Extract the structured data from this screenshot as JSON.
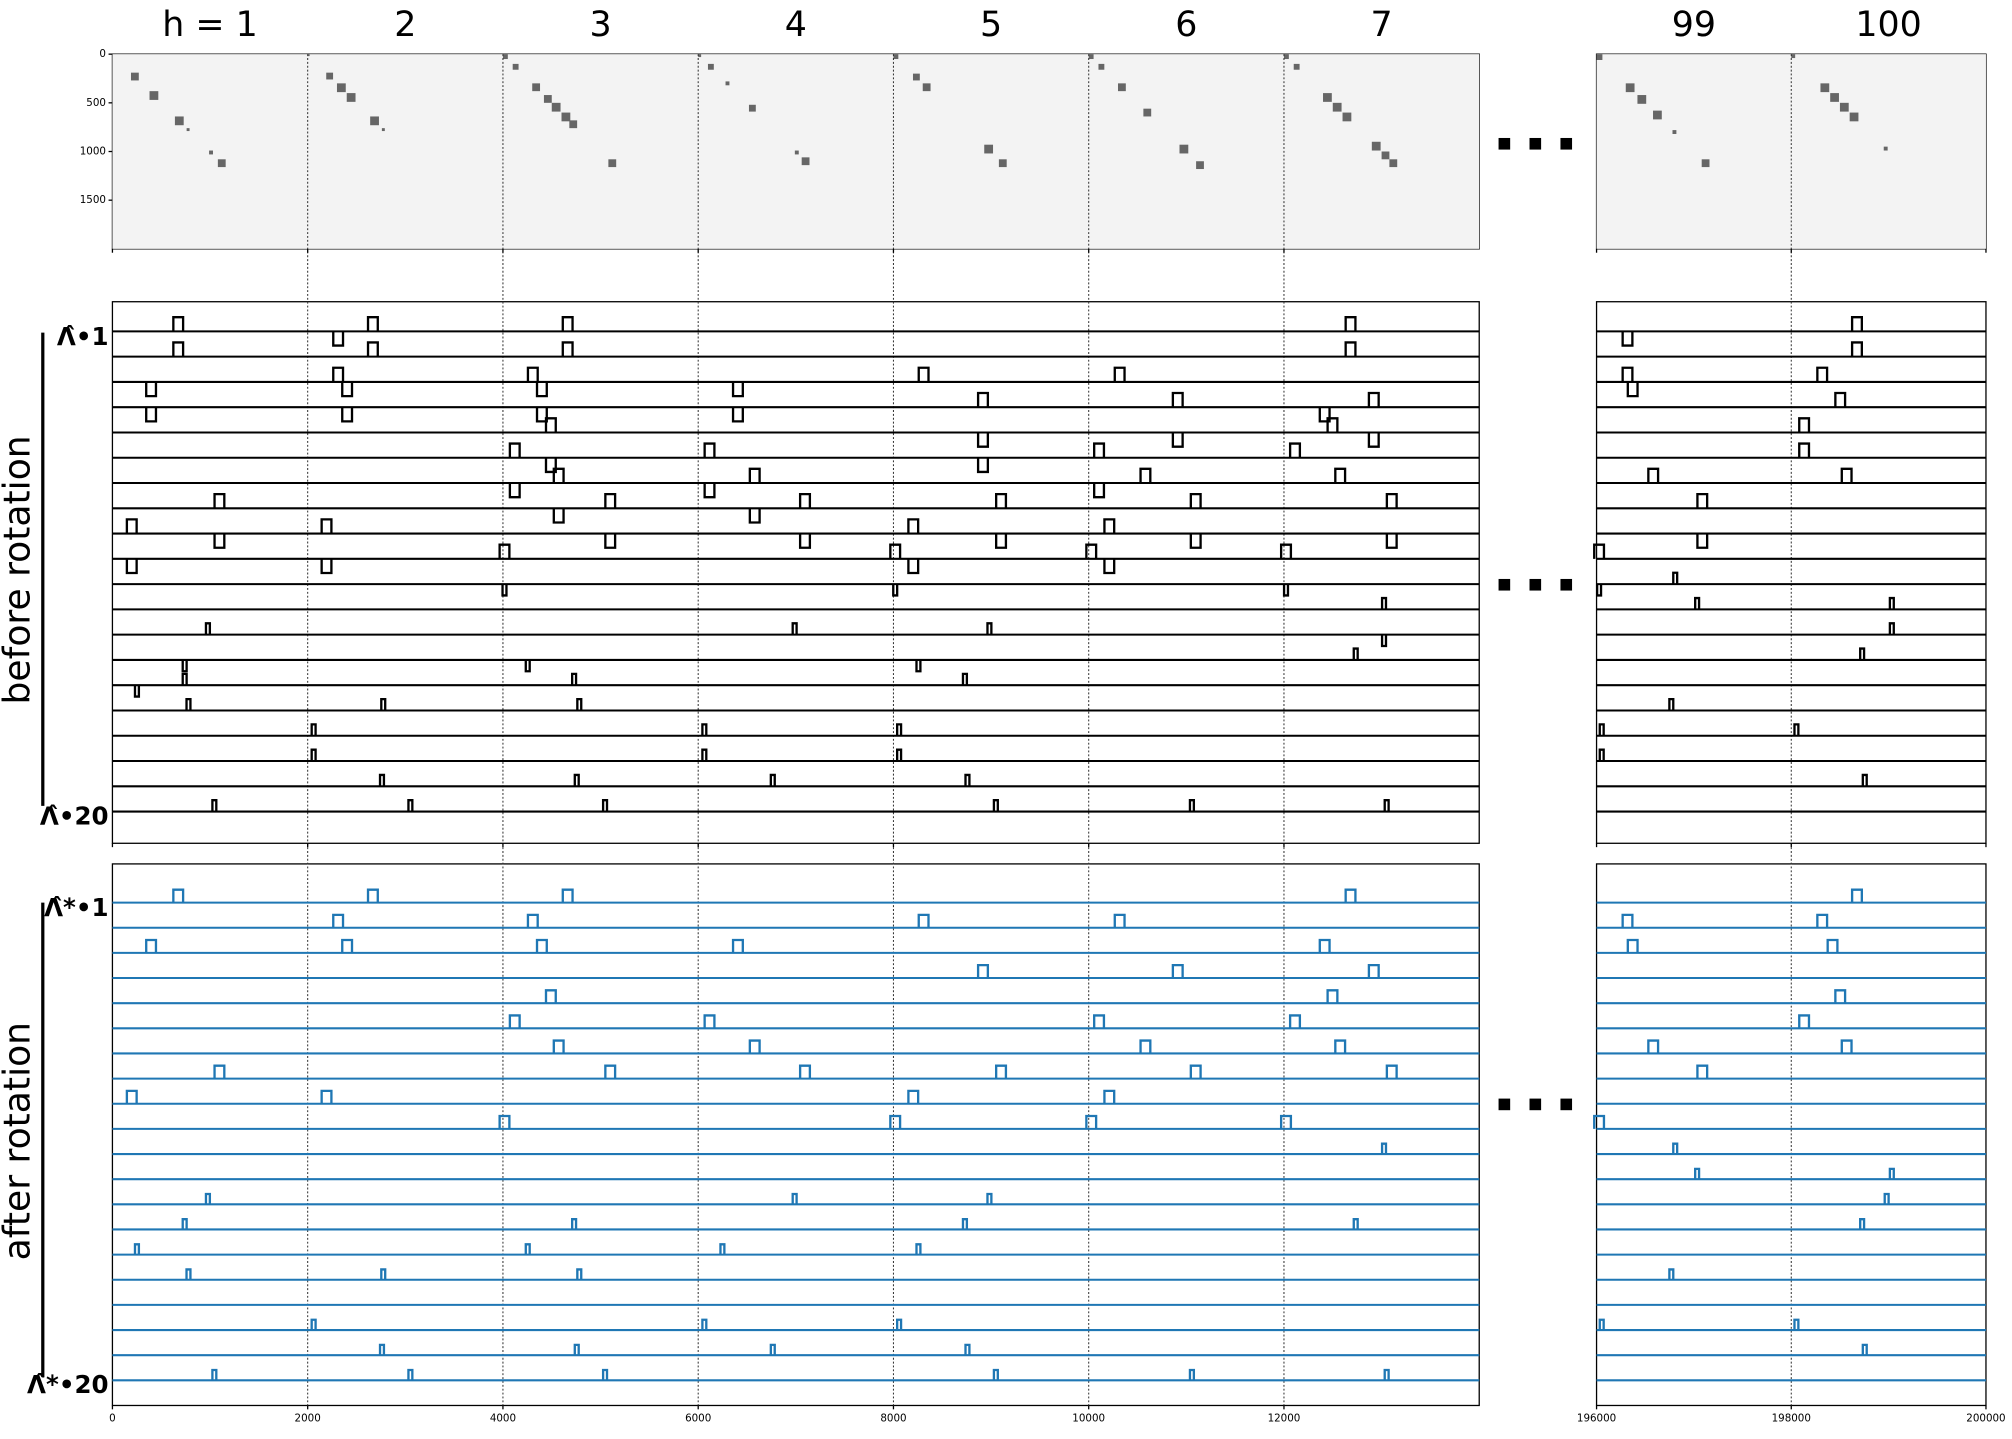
{
  "chart_data": {
    "type": "trace-panels",
    "columns": [
      "h = 1",
      "2",
      "3",
      "4",
      "5",
      "6",
      "7",
      "99",
      "100"
    ],
    "column_starts": [
      0,
      2000,
      4000,
      6000,
      8000,
      10000,
      12000,
      196000,
      198000
    ],
    "x_left": {
      "xlim": [
        0,
        14000
      ],
      "xticks": [
        0,
        2000,
        4000,
        6000,
        8000,
        10000,
        12000
      ]
    },
    "x_right": {
      "xlim": [
        196000,
        200000
      ],
      "xticks": [
        196000,
        198000,
        200000
      ]
    },
    "heatmap": {
      "ylim": [
        0,
        2000
      ],
      "yticks": [
        0,
        500,
        1000,
        1500
      ],
      "blocks": [
        [
          [
            190,
            80
          ],
          [
            380,
            90
          ],
          [
            640,
            90
          ],
          [
            760,
            30
          ],
          [
            990,
            40
          ],
          [
            1080,
            80
          ]
        ],
        [
          [
            0,
            20
          ],
          [
            190,
            70
          ],
          [
            300,
            90
          ],
          [
            400,
            90
          ],
          [
            640,
            90
          ],
          [
            760,
            30
          ]
        ],
        [
          [
            0,
            50
          ],
          [
            100,
            60
          ],
          [
            300,
            80
          ],
          [
            420,
            80
          ],
          [
            500,
            90
          ],
          [
            600,
            90
          ],
          [
            680,
            80
          ],
          [
            1080,
            80
          ]
        ],
        [
          [
            0,
            30
          ],
          [
            100,
            60
          ],
          [
            280,
            40
          ],
          [
            520,
            70
          ],
          [
            990,
            40
          ],
          [
            1060,
            80
          ]
        ],
        [
          [
            0,
            50
          ],
          [
            200,
            70
          ],
          [
            300,
            80
          ],
          [
            930,
            90
          ],
          [
            1080,
            80
          ]
        ],
        [
          [
            0,
            50
          ],
          [
            100,
            60
          ],
          [
            300,
            80
          ],
          [
            560,
            80
          ],
          [
            930,
            90
          ],
          [
            1100,
            80
          ]
        ],
        [
          [
            0,
            50
          ],
          [
            100,
            60
          ],
          [
            400,
            90
          ],
          [
            500,
            90
          ],
          [
            600,
            90
          ],
          [
            900,
            90
          ],
          [
            1000,
            80
          ],
          [
            1080,
            80
          ]
        ],
        [
          [
            0,
            60
          ],
          [
            300,
            90
          ],
          [
            420,
            90
          ],
          [
            580,
            90
          ],
          [
            780,
            40
          ],
          [
            1080,
            80
          ]
        ],
        [
          [
            0,
            40
          ],
          [
            300,
            90
          ],
          [
            400,
            90
          ],
          [
            500,
            90
          ],
          [
            600,
            90
          ],
          [
            950,
            40
          ]
        ]
      ]
    },
    "before": {
      "label": "before rotation",
      "first": "Λ̂•1",
      "last": "Λ̂•20",
      "color": "#000000",
      "rows": [
        {
          "bumps": [
            674,
            2668,
            4663,
            12682,
            198675
          ],
          "dips": [
            2312,
            196318
          ]
        },
        {
          "bumps": [
            674,
            2668,
            4663,
            12682,
            198675
          ],
          "dips": []
        },
        {
          "bumps": [
            2312,
            4306,
            8309,
            10317,
            196318,
            198318
          ],
          "dips": [
            396,
            2404,
            4399,
            6407,
            196371
          ]
        },
        {
          "bumps": [
            8917,
            10912,
            12920,
            198503
          ],
          "dips": [
            396,
            2404,
            4399,
            6407,
            12417
          ]
        },
        {
          "bumps": [
            4491,
            12497,
            198132
          ],
          "dips": [
            8917,
            10912,
            12920
          ]
        },
        {
          "bumps": [
            4121,
            6116,
            10106,
            12113,
            198132
          ],
          "dips": [
            4491,
            8917
          ]
        },
        {
          "bumps": [
            4571,
            6579,
            10581,
            12576,
            196582,
            198569
          ],
          "dips": [
            4121,
            6116,
            10106
          ]
        },
        {
          "bumps": [
            1096,
            5099,
            7094,
            9102,
            11096,
            13104,
            197086
          ],
          "dips": [
            4571,
            6579
          ]
        },
        {
          "bumps": [
            198,
            2193,
            8203,
            10211
          ],
          "dips": [
            1096,
            5099,
            7094,
            9102,
            11096,
            13104,
            197086
          ]
        },
        {
          "bumps": [
            4016,
            8018,
            10026,
            12021,
            196026
          ],
          "dips": [
            198,
            2193,
            8203,
            10211
          ]
        },
        {
          "bumps": [
            196808
          ],
          "dips": [
            4016,
            8018,
            12021,
            196026
          ]
        },
        {
          "bumps": [
            13025,
            197033,
            199033
          ],
          "dips": []
        },
        {
          "bumps": [
            978,
            6988,
            8983,
            199033
          ],
          "dips": [
            13025
          ]
        },
        {
          "bumps": [
            12735,
            198728
          ],
          "dips": [
            740,
            4254,
            8256
          ]
        },
        {
          "bumps": [
            740,
            4729,
            8732
          ],
          "dips": [
            251
          ]
        },
        {
          "bumps": [
            779,
            2774,
            4782,
            196768
          ],
          "dips": []
        },
        {
          "bumps": [
            2061,
            6063,
            8058,
            196053,
            198053
          ],
          "dips": []
        },
        {
          "bumps": [
            2061,
            6063,
            8058,
            196053
          ],
          "dips": []
        },
        {
          "bumps": [
            2761,
            4756,
            6764,
            8758,
            198755
          ],
          "dips": []
        },
        {
          "bumps": [
            1044,
            3052,
            5046,
            9049,
            11057,
            13052
          ],
          "dips": []
        }
      ]
    },
    "after": {
      "label": "after rotation",
      "first": "Λ̂*•1",
      "last": "Λ̂*•20",
      "color": "#1f77b4",
      "rows": [
        {
          "bumps": [
            674,
            2668,
            4663,
            12682,
            198675
          ]
        },
        {
          "bumps": [
            2312,
            4306,
            8309,
            10317,
            196318,
            198318
          ]
        },
        {
          "bumps": [
            396,
            2404,
            4399,
            6407,
            12417,
            196371,
            198424
          ]
        },
        {
          "bumps": [
            8917,
            10912,
            12920
          ]
        },
        {
          "bumps": [
            4491,
            12497,
            198503
          ]
        },
        {
          "bumps": [
            4121,
            6116,
            10106,
            12113,
            198132
          ]
        },
        {
          "bumps": [
            4571,
            6579,
            10581,
            12576,
            196582,
            198569
          ]
        },
        {
          "bumps": [
            1096,
            5099,
            7094,
            9102,
            11096,
            13104,
            197086
          ]
        },
        {
          "bumps": [
            198,
            2193,
            8203,
            10211
          ]
        },
        {
          "bumps": [
            4016,
            8018,
            10026,
            12021,
            196026
          ]
        },
        {
          "bumps": [
            13025,
            196808
          ]
        },
        {
          "bumps": [
            197033,
            199033
          ]
        },
        {
          "bumps": [
            978,
            6988,
            8983,
            198980
          ]
        },
        {
          "bumps": [
            740,
            4729,
            8732,
            12735,
            198728
          ]
        },
        {
          "bumps": [
            251,
            4254,
            6248,
            8256
          ]
        },
        {
          "bumps": [
            779,
            2774,
            4782,
            196768
          ]
        },
        {
          "bumps": []
        },
        {
          "bumps": [
            2061,
            6063,
            8058,
            196053,
            198053
          ]
        },
        {
          "bumps": [
            2761,
            4756,
            6764,
            8758,
            198755
          ]
        },
        {
          "bumps": [
            1044,
            3052,
            5046,
            9049,
            11057,
            13052
          ]
        }
      ]
    }
  }
}
